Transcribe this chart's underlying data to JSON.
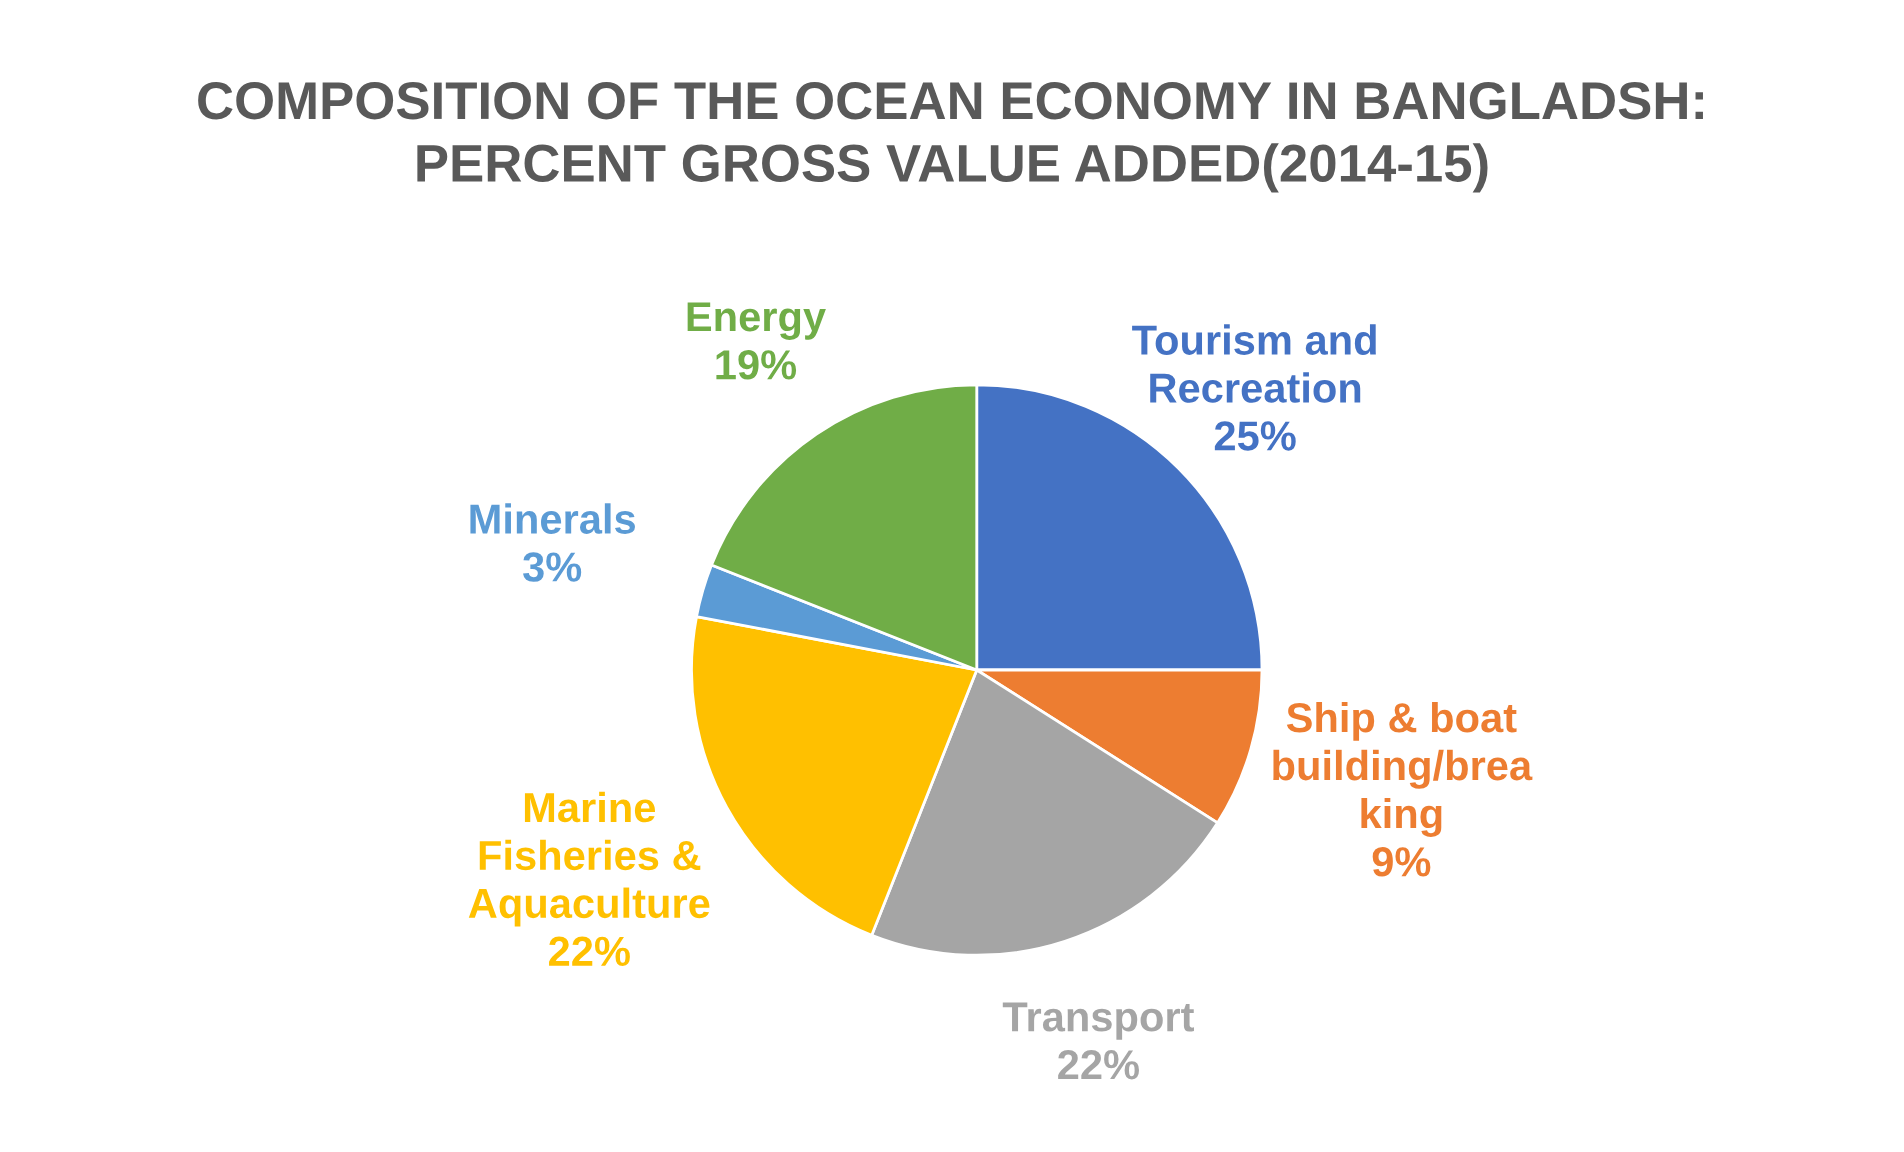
{
  "chart_data": {
    "type": "pie",
    "title": "COMPOSITION OF THE OCEAN ECONOMY IN BANGLADSH:\nPERCENT GROSS VALUE ADDED(2014-15)",
    "categories": [
      "Tourism and\nRecreation",
      "Ship & boat\nbuilding/brea\nking",
      "Transport",
      "Marine\nFisheries &\nAquaculture",
      "Minerals",
      "Energy"
    ],
    "values": [
      25,
      9,
      22,
      22,
      3,
      19
    ],
    "colors": [
      "#4472c4",
      "#ed7d31",
      "#a5a5a5",
      "#ffc000",
      "#5b9bd5",
      "#70ad47"
    ],
    "value_labels": [
      "25%",
      "9%",
      "22%",
      "22%",
      "3%",
      "19%"
    ]
  }
}
